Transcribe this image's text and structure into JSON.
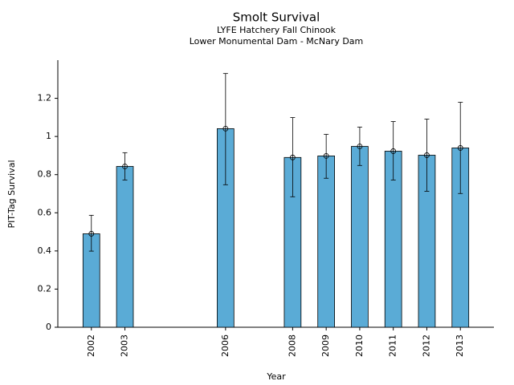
{
  "chart_data": {
    "type": "bar",
    "title": "Smolt Survival",
    "subtitle": [
      "LYFE Hatchery Fall Chinook",
      "Lower Monumental Dam - McNary Dam"
    ],
    "x_label": "Year",
    "y_label": "PIT-Tag Survival",
    "x": [
      2002,
      2003,
      2006,
      2008,
      2009,
      2010,
      2011,
      2012,
      2013
    ],
    "values": [
      0.49,
      0.843,
      1.041,
      0.89,
      0.898,
      0.948,
      0.923,
      0.902,
      0.94
    ],
    "lower": [
      0.399,
      0.772,
      0.747,
      0.684,
      0.781,
      0.848,
      0.772,
      0.713,
      0.701
    ],
    "upper": [
      0.587,
      0.915,
      1.33,
      1.099,
      1.011,
      1.049,
      1.078,
      1.091,
      1.179
    ],
    "color": "#5aabd6",
    "xlim": [
      2001,
      2014
    ],
    "xticks": [
      2002,
      2003,
      2006,
      2008,
      2009,
      2010,
      2011,
      2012,
      2013
    ],
    "ylim": [
      0,
      1.4
    ],
    "yticks": [
      0,
      0.2,
      0.4,
      0.6,
      0.8,
      1,
      1.2
    ],
    "grid": false
  }
}
